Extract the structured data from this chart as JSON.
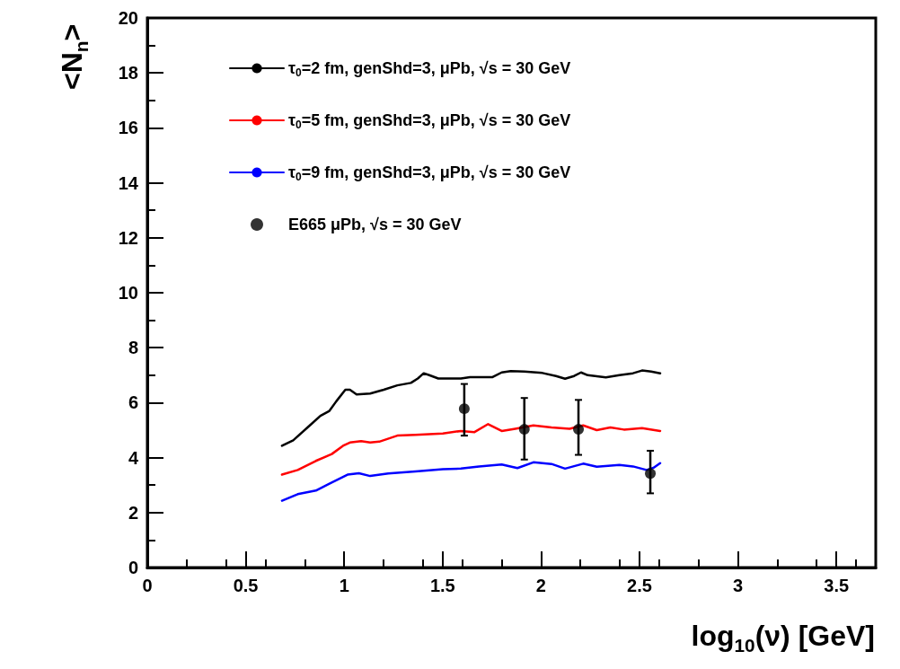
{
  "chart_data": {
    "type": "line",
    "xlabel": "log$_{10}$(ν) [GeV]",
    "ylabel": "<N$_{n}$>",
    "xlim": [
      0,
      3.7
    ],
    "xticks": [
      0,
      0.5,
      1,
      1.5,
      2,
      2.5,
      3,
      3.5
    ],
    "ylim": [
      0,
      20
    ],
    "yticks": [
      0,
      2,
      4,
      6,
      8,
      10,
      12,
      14,
      16,
      18,
      20
    ],
    "grid": false,
    "legend": "top",
    "line_style": "solid",
    "series": [
      {
        "name": "τ$_{0}$=2 fm, genShd=3, μPb, √s = 30 GeV",
        "color": "#000000",
        "marker": "none",
        "x": [
          0.684,
          0.741,
          0.833,
          0.879,
          0.925,
          0.96,
          1.006,
          1.029,
          1.063,
          1.132,
          1.201,
          1.27,
          1.339,
          1.374,
          1.404,
          1.432,
          1.478,
          1.593,
          1.639,
          1.754,
          1.8,
          1.846,
          1.915,
          2.007,
          2.076,
          2.122,
          2.168,
          2.203,
          2.237,
          2.329,
          2.398,
          2.467,
          2.513,
          2.559,
          2.605
        ],
        "values": [
          4.43,
          4.63,
          5.22,
          5.52,
          5.7,
          6.05,
          6.47,
          6.47,
          6.3,
          6.33,
          6.47,
          6.63,
          6.72,
          6.88,
          7.07,
          7.0,
          6.88,
          6.88,
          6.93,
          6.93,
          7.1,
          7.15,
          7.13,
          7.08,
          6.97,
          6.87,
          6.97,
          7.1,
          7.0,
          6.92,
          7.0,
          7.07,
          7.17,
          7.13,
          7.07
        ]
      },
      {
        "name": "τ$_{0}$=5 fm, genShd=3, μPb, √s = 30 GeV",
        "color": "#ff0000",
        "marker": "none",
        "x": [
          0.684,
          0.764,
          0.856,
          0.937,
          0.994,
          1.029,
          1.086,
          1.132,
          1.178,
          1.27,
          1.362,
          1.501,
          1.593,
          1.662,
          1.731,
          1.8,
          1.869,
          1.961,
          2.053,
          2.145,
          2.214,
          2.283,
          2.352,
          2.421,
          2.513,
          2.605
        ],
        "values": [
          3.38,
          3.55,
          3.88,
          4.13,
          4.43,
          4.55,
          4.6,
          4.55,
          4.58,
          4.8,
          4.83,
          4.88,
          4.97,
          4.93,
          5.22,
          4.97,
          5.05,
          5.17,
          5.1,
          5.05,
          5.17,
          5.0,
          5.1,
          5.02,
          5.07,
          4.97
        ]
      },
      {
        "name": "τ$_{0}$=9 fm, genShd=3, μPb, √s = 30 GeV",
        "color": "#0000ff",
        "marker": "none",
        "x": [
          0.684,
          0.764,
          0.856,
          0.925,
          1.017,
          1.075,
          1.132,
          1.224,
          1.362,
          1.501,
          1.593,
          1.685,
          1.8,
          1.88,
          1.961,
          2.053,
          2.122,
          2.214,
          2.283,
          2.398,
          2.467,
          2.536,
          2.571,
          2.605
        ],
        "values": [
          2.43,
          2.67,
          2.8,
          3.05,
          3.38,
          3.43,
          3.33,
          3.42,
          3.5,
          3.58,
          3.6,
          3.68,
          3.75,
          3.62,
          3.83,
          3.77,
          3.6,
          3.78,
          3.67,
          3.73,
          3.68,
          3.55,
          3.63,
          3.8
        ]
      },
      {
        "name": "E665 μPb, √s = 30 GeV",
        "type": "scatter",
        "color": "#000000",
        "marker": "circle",
        "x": [
          1.61,
          1.915,
          2.19,
          2.555
        ],
        "values": [
          5.78,
          5.03,
          5.03,
          3.42
        ],
        "errors": [
          [
            4.8,
            6.68
          ],
          [
            3.93,
            6.17
          ],
          [
            4.1,
            6.1
          ],
          [
            2.7,
            4.25
          ]
        ]
      }
    ]
  }
}
